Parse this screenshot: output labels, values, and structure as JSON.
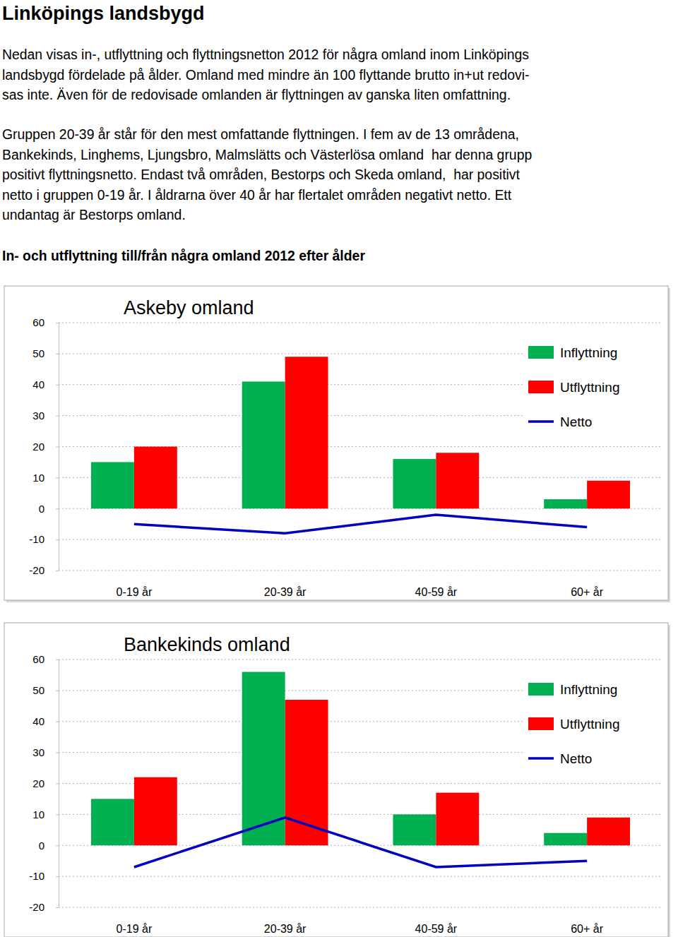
{
  "page": {
    "title": "Linköpings landsbygd",
    "paragraphs": [
      [
        "Nedan visas in-, utflyttning och flyttningsnetton 2012 för några omland inom Linköpings",
        "landsbygd fördelade på ålder. Omland med mindre än 100 flyttande brutto in+ut redovi-",
        "sas inte. Även för de redovisade omlanden är flyttningen av ganska liten omfattning."
      ],
      [
        "Gruppen 20-39 år står för den mest omfattande flyttningen. I fem av de 13 områdena,",
        "Bankekinds, Linghems, Ljungsbro, Malmslätts och Västerlösa omland  har denna grupp",
        "positivt flyttningsnetto. Endast två områden, Bestorps och Skeda omland,  har positivt",
        "netto i gruppen 0-19 år. I åldrarna över 40 år har flertalet områden negativt netto. Ett",
        "undantag är Bestorps omland."
      ]
    ],
    "heading": "In- och utflyttning till/från några omland 2012 efter ålder"
  },
  "chart_data": [
    {
      "type": "bar",
      "title": "Askeby omland",
      "categories": [
        "0-19 år",
        "20-39 år",
        "40-59 år",
        "60+ år"
      ],
      "series": [
        {
          "name": "Inflyttning",
          "color": "#00b050",
          "values": [
            15,
            41,
            16,
            3
          ]
        },
        {
          "name": "Utflyttning",
          "color": "#ff0000",
          "values": [
            20,
            49,
            18,
            9
          ]
        },
        {
          "name": "Netto",
          "type": "line",
          "color": "#0000c0",
          "values": [
            -5,
            -8,
            -2,
            -6
          ]
        }
      ],
      "ylim": [
        -20,
        60
      ],
      "yticks": [
        -20,
        -10,
        0,
        10,
        20,
        30,
        40,
        50,
        60
      ],
      "grid": true,
      "legend": "upper right"
    },
    {
      "type": "bar",
      "title": "Bankekinds omland",
      "categories": [
        "0-19 år",
        "20-39 år",
        "40-59 år",
        "60+ år"
      ],
      "series": [
        {
          "name": "Inflyttning",
          "color": "#00b050",
          "values": [
            15,
            56,
            10,
            4
          ]
        },
        {
          "name": "Utflyttning",
          "color": "#ff0000",
          "values": [
            22,
            47,
            17,
            9
          ]
        },
        {
          "name": "Netto",
          "type": "line",
          "color": "#0000c0",
          "values": [
            -7,
            9,
            -7,
            -5
          ]
        }
      ],
      "ylim": [
        -20,
        60
      ],
      "yticks": [
        -20,
        -10,
        0,
        10,
        20,
        30,
        40,
        50,
        60
      ],
      "grid": true,
      "legend": "upper right"
    }
  ]
}
